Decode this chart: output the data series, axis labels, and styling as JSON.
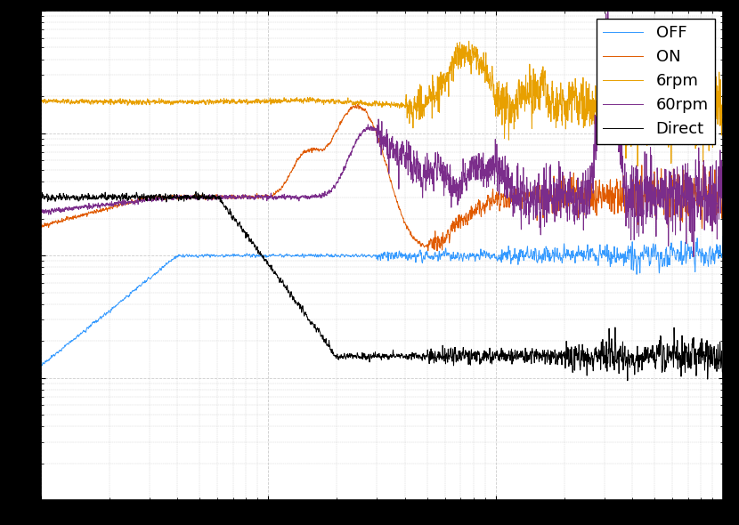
{
  "legend_labels": [
    "OFF",
    "ON",
    "6rpm",
    "60rpm",
    "Direct"
  ],
  "colors": [
    "#3399ff",
    "#e05a00",
    "#e8a000",
    "#7b2d8b",
    "#000000"
  ],
  "figsize": [
    8.3,
    5.9
  ],
  "dpi": 100,
  "background_color": "#ffffff",
  "legend_fontsize": 13,
  "tick_fontsize": 11,
  "xlim": [
    1,
    1000
  ],
  "ylim": [
    1e-09,
    1e-05
  ],
  "grid_color": "#cccccc",
  "outer_bg": "#000000"
}
